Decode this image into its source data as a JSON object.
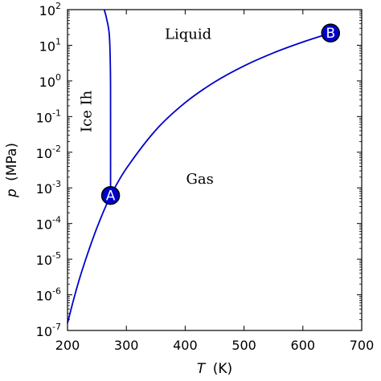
{
  "chart_data": {
    "type": "line",
    "title": "",
    "xlabel": "T (K)",
    "xlabel_var": "T",
    "xlabel_unit": "(K)",
    "ylabel": "p (MPa)",
    "ylabel_var": "p",
    "ylabel_unit": "(MPa)",
    "xlim": [
      200,
      700
    ],
    "ylim": [
      1e-07,
      100
    ],
    "yscale": "log",
    "grid": false,
    "x_ticks": [
      200,
      300,
      400,
      500,
      600,
      700
    ],
    "y_ticks": [
      {
        "base": "10",
        "exp": "-7",
        "value": 1e-07
      },
      {
        "base": "10",
        "exp": "-6",
        "value": 1e-06
      },
      {
        "base": "10",
        "exp": "-5",
        "value": 1e-05
      },
      {
        "base": "10",
        "exp": "-4",
        "value": 0.0001
      },
      {
        "base": "10",
        "exp": "-3",
        "value": 0.001
      },
      {
        "base": "10",
        "exp": "-2",
        "value": 0.01
      },
      {
        "base": "10",
        "exp": "-1",
        "value": 0.1
      },
      {
        "base": "10",
        "exp": "0",
        "value": 1
      },
      {
        "base": "10",
        "exp": "1",
        "value": 10
      },
      {
        "base": "10",
        "exp": "2",
        "value": 100
      }
    ],
    "line_color": "#0000cc",
    "point_color": "#0000cc",
    "series": [
      {
        "id": "sublimation",
        "x": [
          200,
          210,
          220,
          230,
          240,
          250,
          260,
          273.16
        ],
        "y": [
          1.6e-07,
          7e-07,
          2.7e-06,
          8.9e-06,
          2.7e-05,
          7.6e-05,
          0.000196,
          0.0006117
        ]
      },
      {
        "id": "vaporization",
        "x": [
          273.16,
          300,
          350,
          400,
          450,
          500,
          550,
          600,
          647.1
        ],
        "y": [
          0.0006117,
          0.0035,
          0.0417,
          0.2458,
          0.932,
          2.64,
          6.12,
          12.34,
          22.06
        ]
      },
      {
        "id": "melting",
        "x": [
          273.16,
          273.15,
          272.9,
          271.0,
          266.0,
          264.0,
          262.5
        ],
        "y": [
          0.0006117,
          0.1013,
          2.0,
          20,
          60,
          80,
          100
        ]
      }
    ],
    "points": [
      {
        "label": "A",
        "x": 273.16,
        "y": 0.0006117
      },
      {
        "label": "B",
        "x": 647.1,
        "y": 22.06
      }
    ],
    "regions": [
      {
        "label": "Liquid",
        "x": 405,
        "y": 15,
        "rotate": false
      },
      {
        "label": "Gas",
        "x": 425,
        "y": 0.0013,
        "rotate": false
      },
      {
        "label": "Ice Ih",
        "x": 240,
        "y": 0.14,
        "rotate": true
      }
    ]
  }
}
